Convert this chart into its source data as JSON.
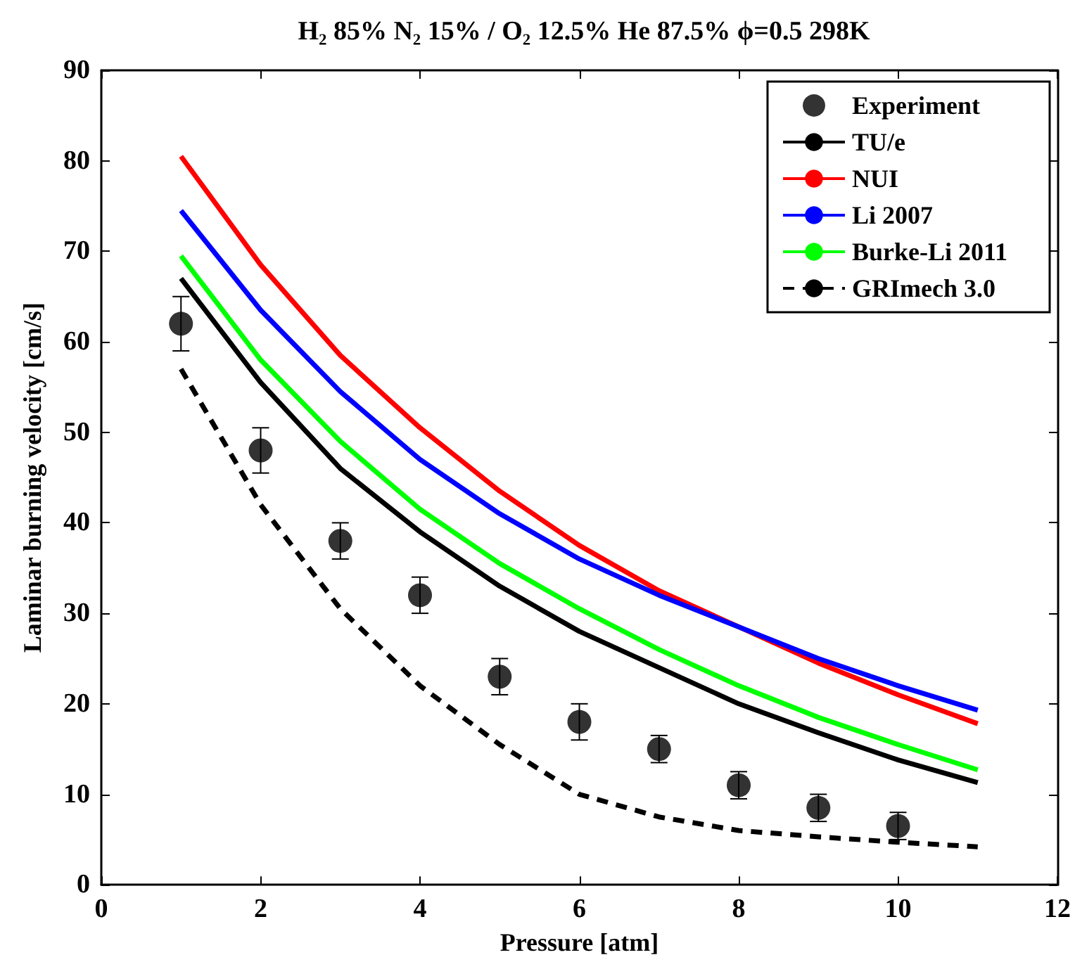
{
  "chart_data": {
    "type": "line",
    "title": "H₂ 85% N₂ 15% / O₂ 12.5% He 87.5% ϕ=0.5 298K",
    "xlabel": "Pressure [atm]",
    "ylabel": "Laminar burning velocity [cm/s]",
    "xlim": [
      0,
      12
    ],
    "xticks": [
      0,
      2,
      4,
      6,
      8,
      10,
      12
    ],
    "ylim": [
      0,
      90
    ],
    "yticks": [
      0,
      10,
      20,
      30,
      40,
      50,
      60,
      70,
      80,
      90
    ],
    "grid": false,
    "legend": "top right",
    "series": [
      {
        "name": "Experiment",
        "type": "scatter",
        "marker": "circle",
        "color": "#000000",
        "x": [
          1,
          2,
          3,
          4,
          5,
          6,
          7,
          8,
          9,
          10
        ],
        "values": [
          62,
          48,
          38,
          32,
          23,
          18,
          15,
          11,
          8.5,
          6.5
        ],
        "errors": [
          3,
          2.5,
          2,
          2,
          2,
          2,
          1.5,
          1.5,
          1.5,
          1.5
        ]
      },
      {
        "name": "TU/e",
        "color": "#000000",
        "marker": "none",
        "line_style": "solid",
        "x": [
          1,
          2,
          3,
          4,
          5,
          6,
          7,
          8,
          9,
          10,
          11
        ],
        "values": [
          67,
          55.5,
          46,
          39,
          33,
          28,
          24,
          20,
          16.8,
          13.8,
          11.3
        ]
      },
      {
        "name": "NUI",
        "color": "#ff0000",
        "marker": "none",
        "line_style": "solid",
        "x": [
          1,
          2,
          3,
          4,
          5,
          6,
          7,
          8,
          9,
          10,
          11
        ],
        "values": [
          80.5,
          68.5,
          58.5,
          50.5,
          43.5,
          37.5,
          32.5,
          28.5,
          24.5,
          21,
          17.8
        ]
      },
      {
        "name": "Li 2007",
        "color": "#0000ff",
        "marker": "none",
        "line_style": "solid",
        "x": [
          1,
          2,
          3,
          4,
          5,
          6,
          7,
          8,
          9,
          10,
          11
        ],
        "values": [
          74.5,
          63.5,
          54.5,
          47,
          41,
          36,
          32,
          28.5,
          25,
          22,
          19.3
        ]
      },
      {
        "name": "Burke-Li 2011",
        "color": "#00ff00",
        "marker": "none",
        "line_style": "solid",
        "x": [
          1,
          2,
          3,
          4,
          5,
          6,
          7,
          8,
          9,
          10,
          11
        ],
        "values": [
          69.5,
          58,
          49,
          41.5,
          35.5,
          30.5,
          26,
          22,
          18.5,
          15.5,
          12.7
        ]
      },
      {
        "name": "GRImech 3.0",
        "color": "#000000",
        "marker": "none",
        "line_style": "dashed",
        "x": [
          1,
          2,
          3,
          4,
          5,
          6,
          7,
          8,
          9,
          10,
          11
        ],
        "values": [
          57,
          42,
          30.5,
          22,
          15.5,
          10,
          7.5,
          6,
          5.3,
          4.7,
          4.2
        ]
      }
    ]
  }
}
